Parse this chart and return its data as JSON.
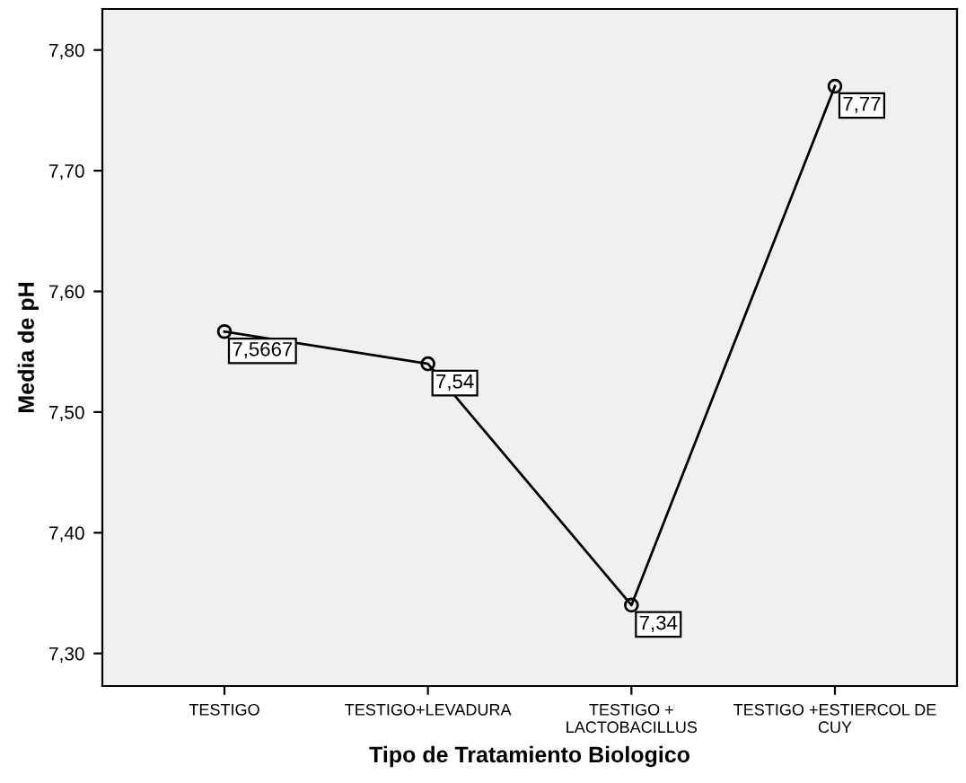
{
  "chart_data": {
    "type": "line",
    "xlabel": "Tipo de Tratamiento Biologico",
    "ylabel": "Media de pH",
    "categories": [
      "TESTIGO",
      "TESTIGO+LEVADURA",
      "TESTIGO +\nLACTOBACILLUS",
      "TESTIGO +ESTIERCOL DE\nCUY"
    ],
    "series": [
      {
        "color": "#000000",
        "values": [
          7.5667,
          7.54,
          7.34,
          7.77
        ],
        "value_labels": [
          "7,5667",
          "7,54",
          "7,34",
          "7,77"
        ]
      }
    ],
    "ylim": [
      7.273,
      7.834
    ],
    "yticks": [
      {
        "value": 7.3,
        "label": "7,30"
      },
      {
        "value": 7.4,
        "label": "7,40"
      },
      {
        "value": 7.5,
        "label": "7,50"
      },
      {
        "value": 7.6,
        "label": "7,60"
      },
      {
        "value": 7.7,
        "label": "7,70"
      },
      {
        "value": 7.8,
        "label": "7,80"
      }
    ],
    "marker": "circle",
    "line_style": "solid",
    "grid": false
  }
}
